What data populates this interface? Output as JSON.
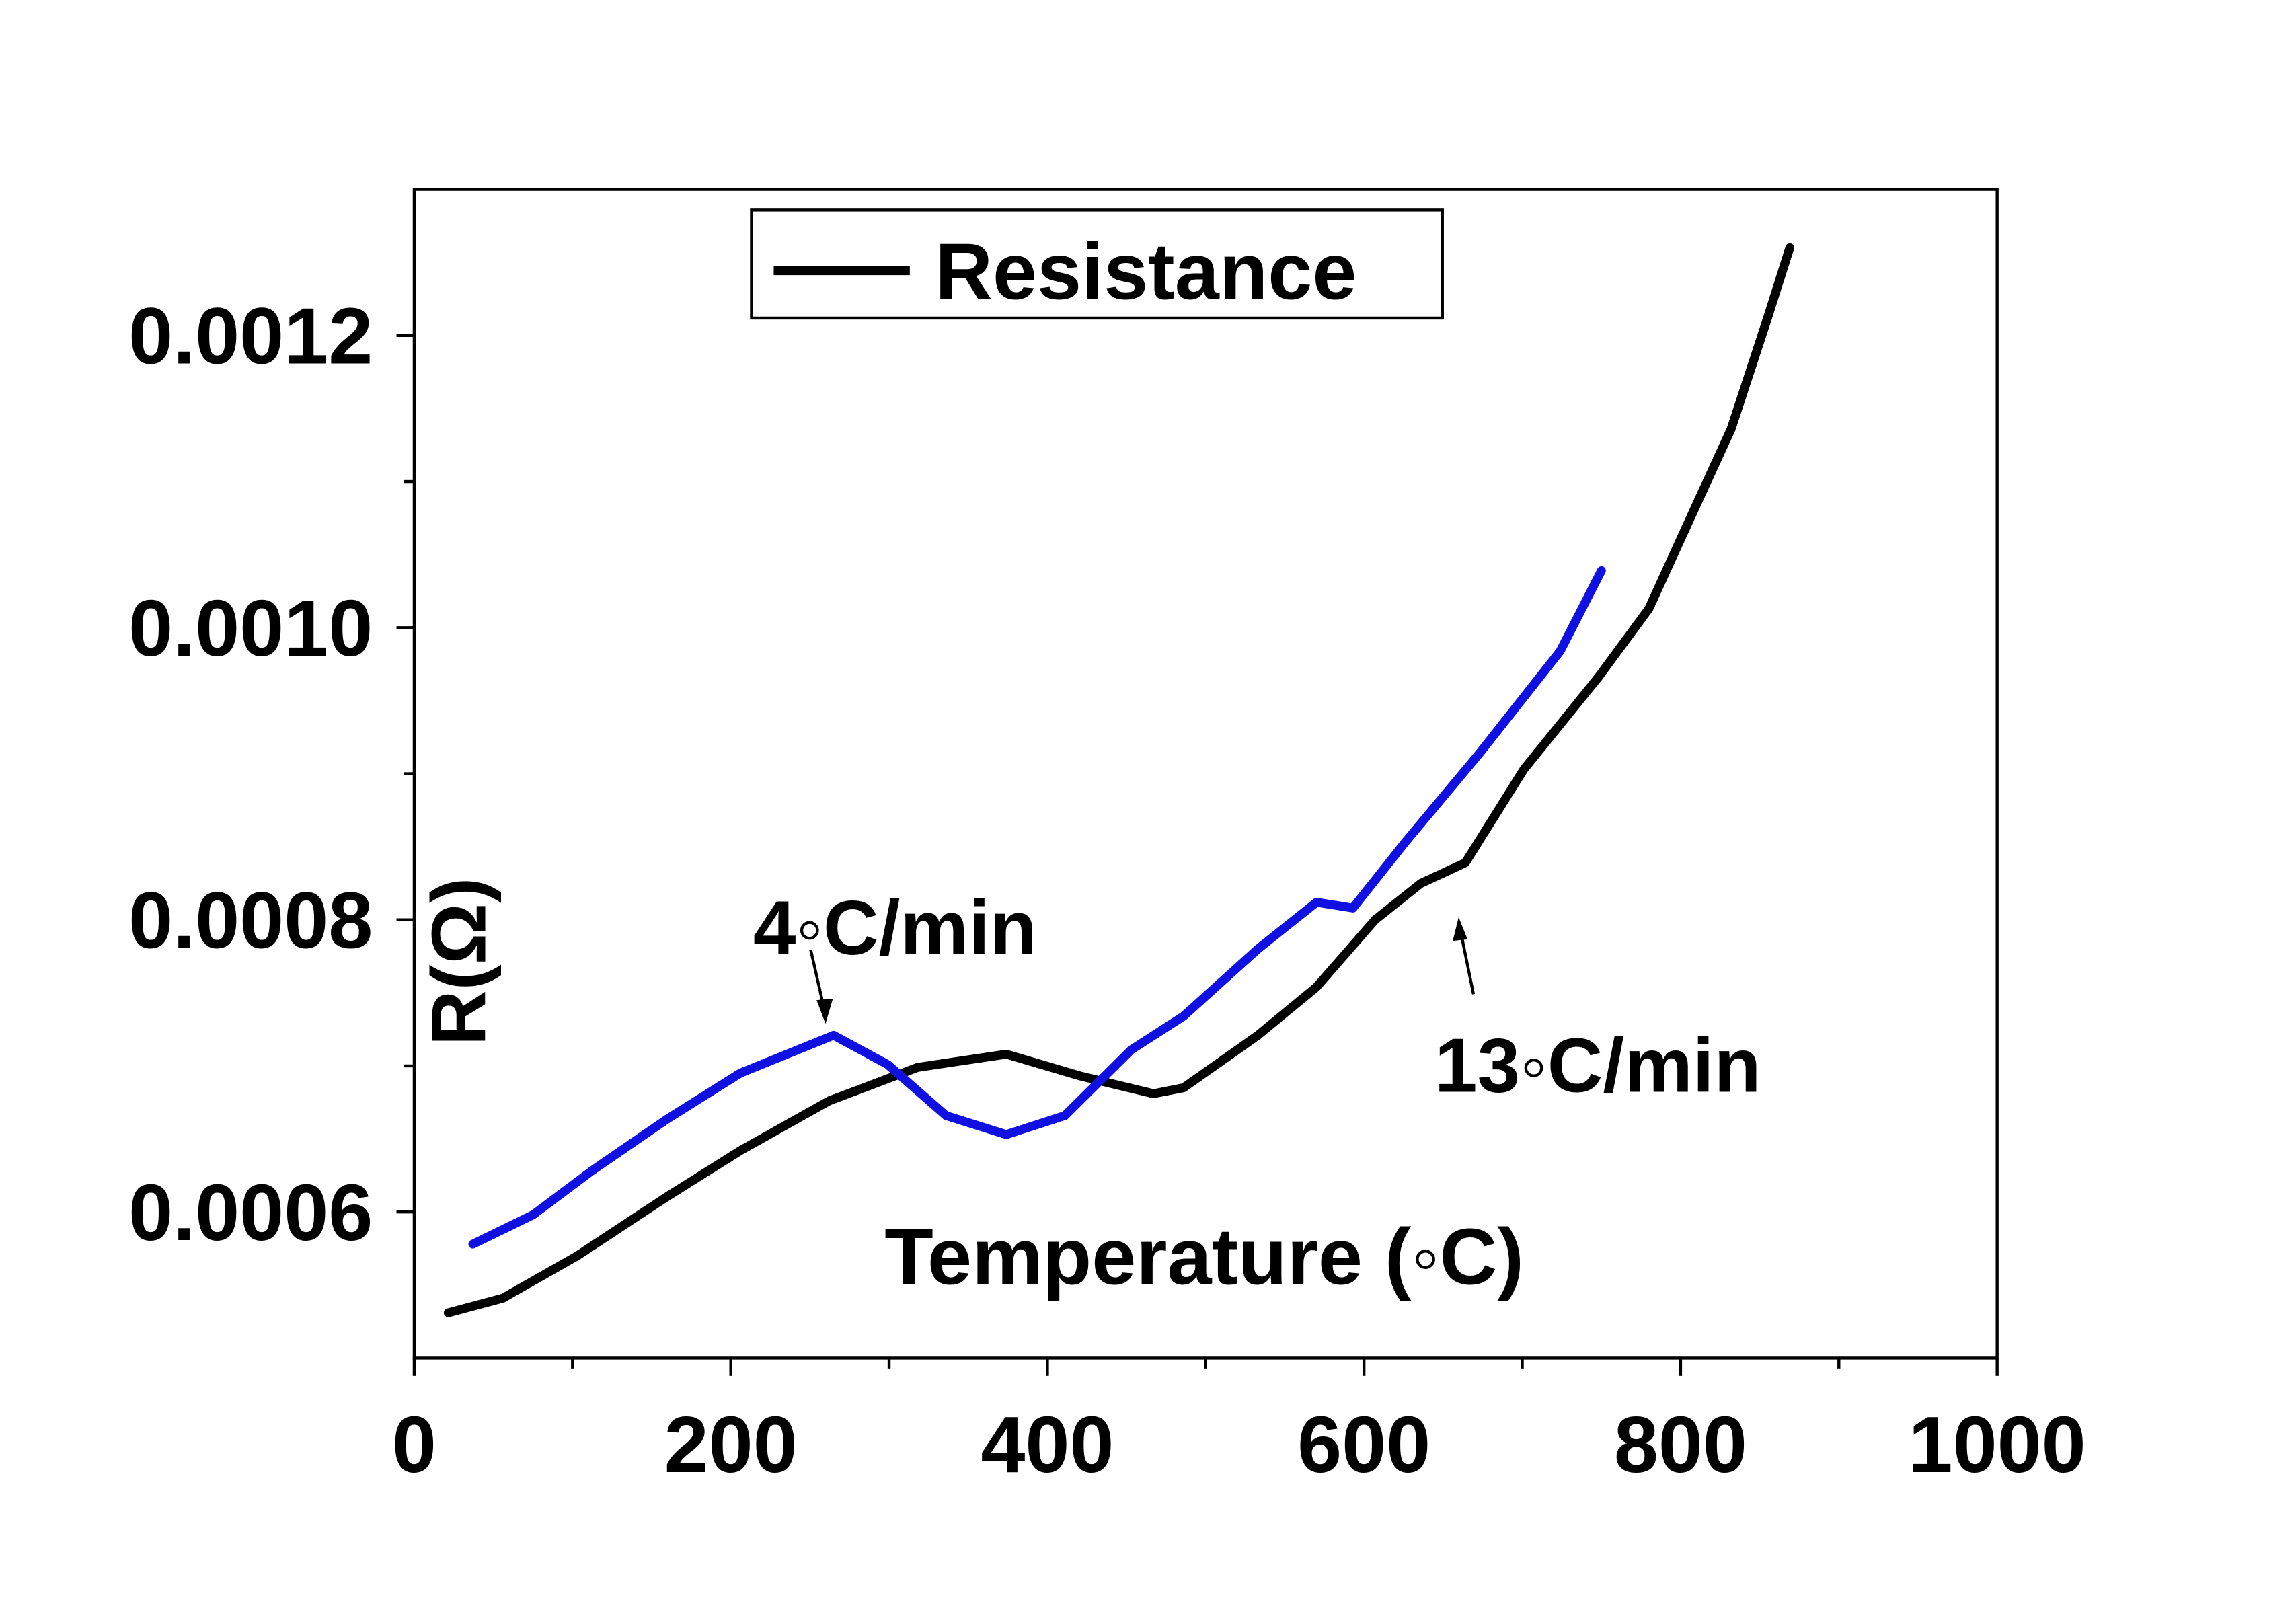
{
  "chart_data": {
    "type": "line",
    "xlabel": "Temperature  (◦C)",
    "ylabel": "R(Ω)",
    "annotations": [
      "4◦C/min",
      "13◦C/min"
    ],
    "xlim": [
      0,
      1000
    ],
    "xticks": [
      0,
      200,
      400,
      600,
      800,
      1000
    ],
    "xminorticks": [
      100,
      300,
      500,
      700,
      900
    ],
    "ylim": [
      0.0005,
      0.0013
    ],
    "yticks": [
      {
        "value": 0.0006,
        "label": "0.0006"
      },
      {
        "value": 0.0008,
        "label": "0.0008"
      },
      {
        "value": 0.001,
        "label": "0.0010"
      },
      {
        "value": 0.0012,
        "label": "0.0012"
      }
    ],
    "yminorticks": [
      0.0007,
      0.0009,
      0.0011
    ],
    "legend": "top",
    "series": [
      {
        "name": "Resistance",
        "color": "#000000",
        "x": [
          21.5,
          56,
          103,
          159,
          206,
          262,
          318,
          374,
          421,
          467,
          486,
          533,
          570,
          607,
          636,
          664,
          701,
          748,
          780,
          804,
          832,
          855,
          869
        ],
        "values": [
          0.000531,
          0.000541,
          0.00057,
          0.00061,
          0.000642,
          0.000676,
          0.000699,
          0.000708,
          0.000693,
          0.000681,
          0.000685,
          0.000721,
          0.000754,
          0.0008,
          0.000825,
          0.000839,
          0.000903,
          0.000966,
          0.001013,
          0.00107,
          0.001136,
          0.001212,
          0.00126
        ]
      },
      {
        "color": "#1010e0",
        "x": [
          37,
          75,
          112,
          159,
          206,
          265,
          299,
          336,
          374,
          411,
          453,
          486,
          533,
          570,
          593,
          626,
          673,
          724,
          750
        ],
        "values": [
          0.000578,
          0.000598,
          0.000628,
          0.000663,
          0.000695,
          0.000721,
          0.000701,
          0.000666,
          0.000653,
          0.000666,
          0.000711,
          0.000734,
          0.00078,
          0.000812,
          0.000808,
          0.000853,
          0.000914,
          0.000984,
          0.001039
        ]
      }
    ]
  }
}
